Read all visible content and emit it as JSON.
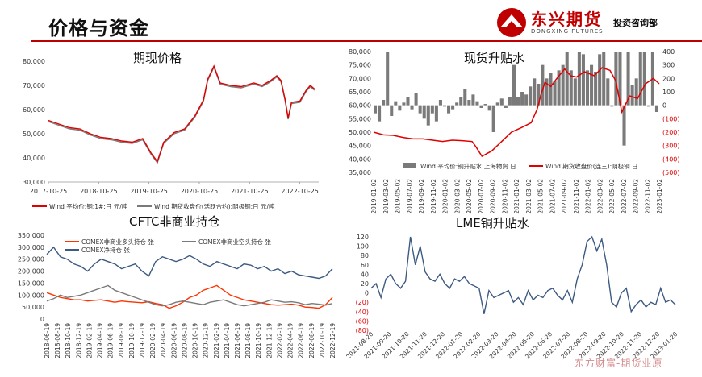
{
  "header": {
    "title": "价格与资金",
    "brand": "东兴期货",
    "brand_en": "DONGXING FUTURES",
    "dept": "投资咨询部"
  },
  "watermark": "东方财富-期货业原",
  "colors": {
    "red": "#e00000",
    "grey": "#7a7a7a",
    "blue": "#3c5a82",
    "orange": "#ff3300",
    "lightblue": "#8aa0c0"
  },
  "chart_data": [
    {
      "type": "line",
      "title": "期现价格",
      "x_ticks": [
        "2017-10-25",
        "2018-10-25",
        "2019-10-25",
        "2020-10-25",
        "2021-10-25",
        "2022-10-25"
      ],
      "y_ticks": [
        "30,000",
        "40,000",
        "50,000",
        "60,000",
        "70,000",
        "80,000"
      ],
      "ylim": [
        30000,
        80000
      ],
      "series": [
        {
          "name": "Wind 平均价:铜:1#:日 元/吨",
          "color": "#e00000",
          "values": [
            [
              0,
              55500
            ],
            [
              0.25,
              54000
            ],
            [
              0.5,
              52500
            ],
            [
              0.75,
              52000
            ],
            [
              1,
              50000
            ],
            [
              1.25,
              48500
            ],
            [
              1.5,
              48000
            ],
            [
              1.75,
              47000
            ],
            [
              2,
              46500
            ],
            [
              2.25,
              48000
            ],
            [
              2.45,
              42000
            ],
            [
              2.6,
              38500
            ],
            [
              2.75,
              46500
            ],
            [
              3,
              50500
            ],
            [
              3.25,
              52000
            ],
            [
              3.5,
              57500
            ],
            [
              3.7,
              64000
            ],
            [
              3.8,
              72500
            ],
            [
              3.95,
              78000
            ],
            [
              4.1,
              71000
            ],
            [
              4.35,
              70000
            ],
            [
              4.6,
              69500
            ],
            [
              4.9,
              71000
            ],
            [
              5.1,
              70000
            ],
            [
              5.3,
              72000
            ],
            [
              5.45,
              74000
            ],
            [
              5.55,
              72000
            ],
            [
              5.65,
              64000
            ],
            [
              5.72,
              56500
            ],
            [
              5.8,
              63000
            ],
            [
              6,
              63500
            ],
            [
              6.15,
              68000
            ],
            [
              6.25,
              70000
            ],
            [
              6.35,
              68500
            ]
          ]
        },
        {
          "name": "Wind 期货收盘价(活跃合约):阴极铜:日 元/吨",
          "color": "#7a7a7a",
          "values": [
            [
              0,
              55000
            ],
            [
              0.25,
              53500
            ],
            [
              0.5,
              52000
            ],
            [
              0.75,
              51500
            ],
            [
              1,
              49500
            ],
            [
              1.25,
              48000
            ],
            [
              1.5,
              47500
            ],
            [
              1.75,
              46500
            ],
            [
              2,
              46000
            ],
            [
              2.25,
              47500
            ],
            [
              2.45,
              41500
            ],
            [
              2.6,
              38000
            ],
            [
              2.75,
              46000
            ],
            [
              3,
              50000
            ],
            [
              3.25,
              51500
            ],
            [
              3.5,
              57000
            ],
            [
              3.7,
              63500
            ],
            [
              3.8,
              72000
            ],
            [
              3.95,
              77500
            ],
            [
              4.1,
              70500
            ],
            [
              4.35,
              69500
            ],
            [
              4.6,
              69000
            ],
            [
              4.9,
              70500
            ],
            [
              5.1,
              69500
            ],
            [
              5.3,
              71500
            ],
            [
              5.45,
              73500
            ],
            [
              5.55,
              71500
            ],
            [
              5.65,
              63500
            ],
            [
              5.72,
              56000
            ],
            [
              5.8,
              62500
            ],
            [
              6,
              63000
            ],
            [
              6.15,
              67500
            ],
            [
              6.25,
              69500
            ],
            [
              6.35,
              68000
            ]
          ]
        }
      ]
    },
    {
      "type": "bar+line",
      "title": "现货升贴水",
      "x_ticks": [
        "2019-01-02",
        "2019-03-02",
        "2019-05-02",
        "2019-07-02",
        "2019-09-02",
        "2019-11-02",
        "2020-01-02",
        "2020-03-02",
        "2020-05-02",
        "2020-07-02",
        "2020-09-02",
        "2020-11-02",
        "2021-01-02",
        "2021-03-02",
        "2021-05-02",
        "2021-07-02",
        "2021-09-02",
        "2021-11-02",
        "2022-01-02",
        "2022-03-02",
        "2022-05-02",
        "2022-07-02",
        "2022-09-02",
        "2022-11-02",
        "2023-01-02"
      ],
      "y_left_ticks": [
        "35,000",
        "40,000",
        "45,000",
        "50,000",
        "55,000",
        "60,000",
        "65,000",
        "70,000",
        "75,000",
        "80,000"
      ],
      "y_right_ticks": [
        "(500)",
        "(400)",
        "(300)",
        "(200)",
        "(100)",
        "0",
        "100",
        "200",
        "300",
        "400"
      ],
      "ylim_left": [
        35000,
        80000
      ],
      "ylim_right": [
        -500,
        400
      ],
      "series": [
        {
          "name": "Wind 平均价:铜升贴水:上海物贸 日",
          "color": "#7a7a7a",
          "axis": "right",
          "values": [
            -60,
            -120,
            40,
            400,
            -80,
            30,
            -40,
            20,
            60,
            -30,
            90,
            -60,
            -100,
            -150,
            -60,
            -120,
            40,
            -10,
            -60,
            -30,
            20,
            60,
            120,
            40,
            80,
            30,
            -20,
            10,
            -40,
            -200,
            20,
            50,
            -20,
            60,
            300,
            60,
            100,
            80,
            140,
            200,
            160,
            300,
            200,
            240,
            180,
            260,
            300,
            400,
            260,
            200,
            400,
            380,
            260,
            300,
            250,
            380,
            400,
            200,
            -10,
            400,
            400,
            -300,
            400,
            150,
            200,
            400,
            400,
            -10,
            400,
            -50
          ]
        },
        {
          "name": "Wind 期货收盘价(连三):阴极铜 日",
          "color": "#e00000",
          "axis": "left",
          "values": [
            [
              0,
              50000
            ],
            [
              0.05,
              49000
            ],
            [
              0.1,
              48800
            ],
            [
              0.15,
              48000
            ],
            [
              0.2,
              47500
            ],
            [
              0.25,
              47500
            ],
            [
              0.3,
              47000
            ],
            [
              0.35,
              46500
            ],
            [
              0.4,
              47000
            ],
            [
              0.45,
              46800
            ],
            [
              0.5,
              46500
            ],
            [
              0.52,
              44500
            ],
            [
              0.55,
              41000
            ],
            [
              0.6,
              43000
            ],
            [
              0.65,
              46500
            ],
            [
              0.7,
              50000
            ],
            [
              0.73,
              51000
            ],
            [
              0.76,
              52000
            ],
            [
              0.8,
              53500
            ],
            [
              0.83,
              58500
            ],
            [
              0.85,
              64000
            ],
            [
              0.87,
              68500
            ],
            [
              0.9,
              67000
            ],
            [
              0.93,
              70000
            ],
            [
              0.97,
              73500
            ],
            [
              1,
              71000
            ],
            [
              1.03,
              70500
            ],
            [
              1.07,
              72500
            ],
            [
              1.12,
              71000
            ],
            [
              1.16,
              74000
            ],
            [
              1.2,
              73000
            ],
            [
              1.23,
              69000
            ],
            [
              1.26,
              57500
            ],
            [
              1.3,
              63500
            ],
            [
              1.34,
              62500
            ],
            [
              1.38,
              68000
            ],
            [
              1.42,
              70000
            ],
            [
              1.45,
              68000
            ]
          ]
        }
      ]
    },
    {
      "type": "line",
      "title": "CFTC非商业持仓",
      "x_ticks": [
        "2018-06-19",
        "2018-08-19",
        "2018-10-19",
        "2018-12-19",
        "2019-02-19",
        "2019-04-19",
        "2019-06-19",
        "2019-08-19",
        "2019-10-19",
        "2019-12-19",
        "2020-02-19",
        "2020-04-19",
        "2020-06-19",
        "2020-08-19",
        "2020-10-19",
        "2020-12-19",
        "2021-02-19",
        "2021-04-19",
        "2021-06-19",
        "2021-08-19",
        "2021-10-19",
        "2021-12-19",
        "2022-02-19",
        "2022-04-19",
        "2022-06-19",
        "2022-08-19",
        "2022-10-19",
        "2022-12-19"
      ],
      "y_ticks": [
        "0",
        "50,000",
        "100,000",
        "150,000",
        "200,000",
        "250,000",
        "300,000",
        "350,000"
      ],
      "ylim": [
        0,
        350000
      ],
      "series": [
        {
          "name": "COMEX非商业多头持仓 张",
          "color": "#ff3300",
          "values": [
            110000,
            100000,
            90000,
            85000,
            80000,
            80000,
            75000,
            78000,
            80000,
            75000,
            70000,
            75000,
            72000,
            70000,
            68000,
            72000,
            65000,
            60000,
            45000,
            55000,
            70000,
            90000,
            100000,
            120000,
            130000,
            140000,
            120000,
            100000,
            90000,
            80000,
            75000,
            70000,
            65000,
            60000,
            58000,
            60000,
            62000,
            58000,
            50000,
            48000,
            45000,
            60000,
            90000
          ]
        },
        {
          "name": "COMEX非商业空头持仓 张",
          "color": "#7a7a7a",
          "values": [
            75000,
            85000,
            100000,
            90000,
            95000,
            100000,
            110000,
            120000,
            130000,
            140000,
            120000,
            110000,
            100000,
            90000,
            80000,
            70000,
            60000,
            55000,
            60000,
            70000,
            75000,
            70000,
            65000,
            60000,
            70000,
            75000,
            80000,
            70000,
            60000,
            55000,
            60000,
            65000,
            70000,
            80000,
            75000,
            70000,
            72000,
            68000,
            60000,
            65000,
            62000,
            58000,
            65000
          ]
        },
        {
          "name": "COMEX净持仓 张",
          "color": "#3c5a82",
          "values": [
            270000,
            300000,
            260000,
            250000,
            230000,
            220000,
            200000,
            230000,
            250000,
            240000,
            230000,
            210000,
            220000,
            230000,
            200000,
            180000,
            240000,
            260000,
            250000,
            240000,
            250000,
            265000,
            250000,
            230000,
            220000,
            240000,
            230000,
            220000,
            210000,
            230000,
            225000,
            210000,
            220000,
            200000,
            210000,
            190000,
            200000,
            185000,
            180000,
            175000,
            170000,
            180000,
            210000
          ]
        }
      ]
    },
    {
      "type": "line",
      "title": "LME铜升贴水",
      "x_ticks": [
        "2021-08-20",
        "2021-09-20",
        "2021-10-20",
        "2021-11-20",
        "2021-12-20",
        "2022-01-20",
        "2022-02-20",
        "2022-03-20",
        "2022-04-20",
        "2022-05-20",
        "2022-06-20",
        "2022-07-20",
        "2022-08-20",
        "2022-09-20",
        "2022-10-20",
        "2022-11-20",
        "2022-12-20",
        "2023-01-20"
      ],
      "y_ticks": [
        "(80)",
        "(60)",
        "(40)",
        "(20)",
        "0",
        "20",
        "40",
        "60",
        "80",
        "100",
        "120"
      ],
      "ylim": [
        -80,
        120
      ],
      "series": [
        {
          "name": "LME铜升贴水",
          "color": "#3c5a82",
          "values": [
            10,
            20,
            -10,
            30,
            40,
            20,
            10,
            25,
            120,
            60,
            100,
            45,
            30,
            25,
            40,
            20,
            10,
            30,
            25,
            35,
            20,
            15,
            10,
            -45,
            5,
            -10,
            -5,
            0,
            5,
            -20,
            -10,
            -25,
            5,
            -15,
            -5,
            -10,
            5,
            10,
            -5,
            -15,
            5,
            -20,
            30,
            60,
            110,
            120,
            90,
            115,
            60,
            -20,
            -30,
            0,
            10,
            -40,
            -25,
            -15,
            -30,
            -20,
            -25,
            10,
            -20,
            -15,
            -25
          ]
        }
      ]
    }
  ]
}
